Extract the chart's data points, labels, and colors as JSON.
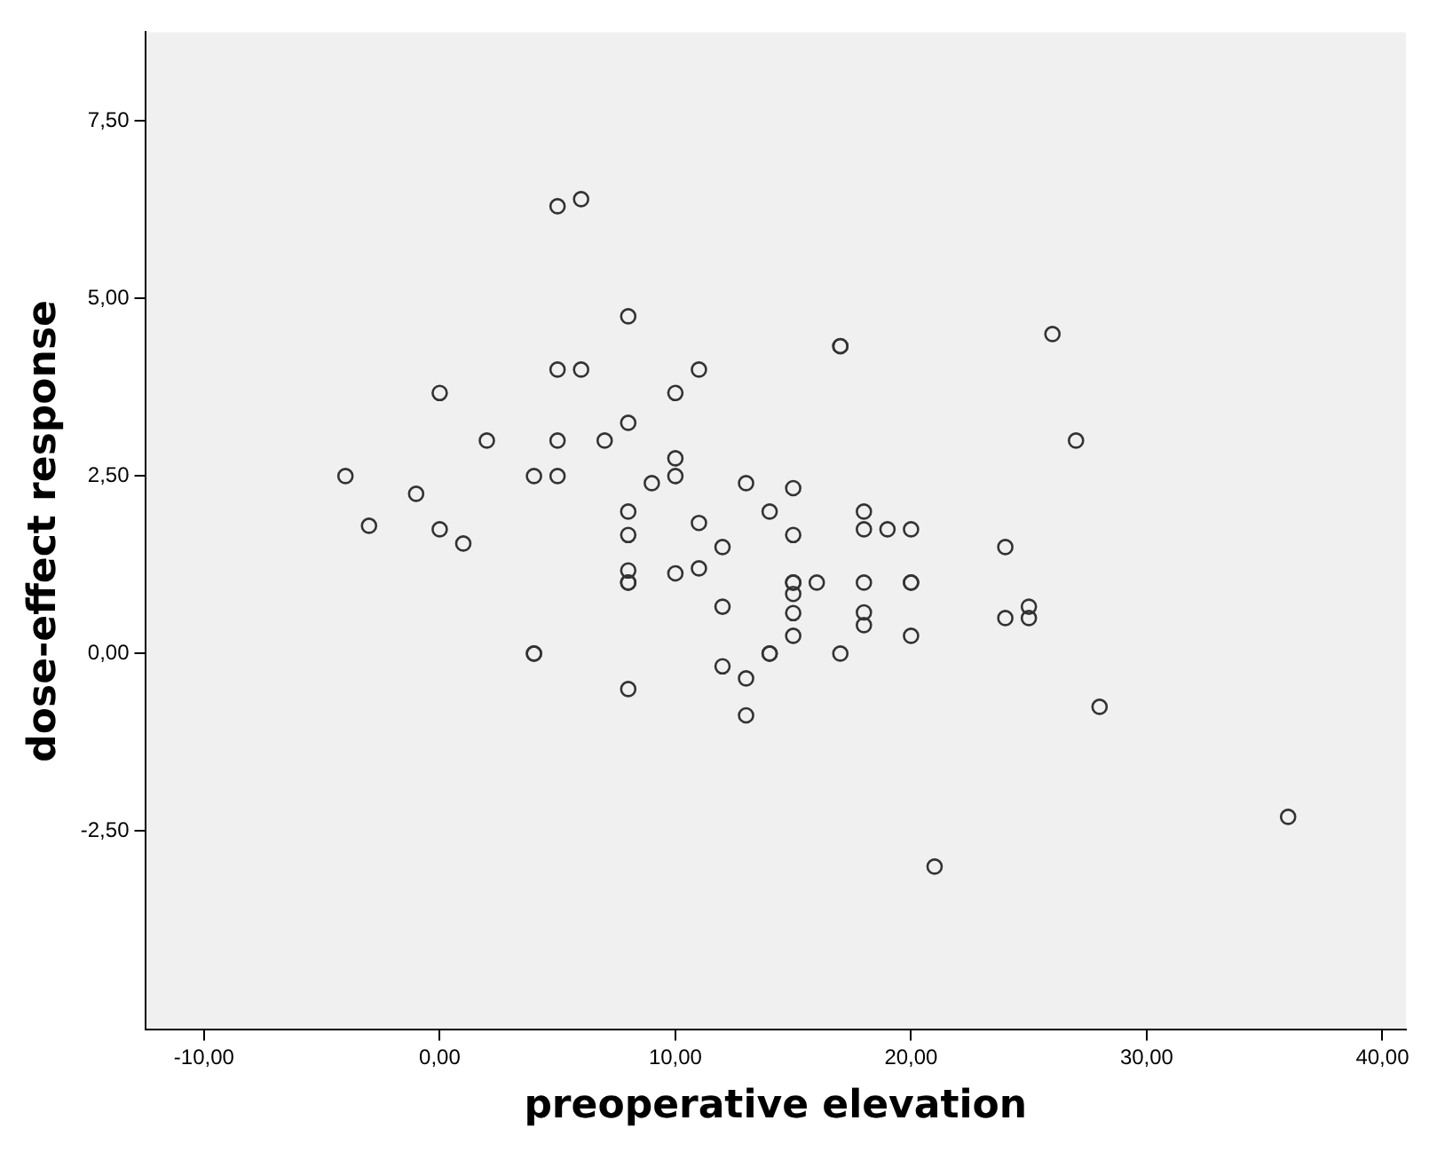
{
  "chart_data": {
    "type": "scatter",
    "xlabel": "preoperative elevation",
    "ylabel": "dose-effect response",
    "series": [
      {
        "color": "#333333",
        "x": [
          5,
          6,
          8,
          5,
          6,
          11,
          0,
          10,
          8,
          2,
          5,
          7,
          10,
          -4,
          4,
          5,
          9,
          10,
          13,
          -1,
          -3,
          0,
          1,
          8,
          8,
          11,
          14,
          12,
          8,
          8,
          8,
          10,
          11,
          12,
          4,
          4,
          12,
          13,
          14,
          14,
          8,
          13,
          17,
          17,
          26,
          27,
          15,
          18,
          18,
          19,
          20,
          15,
          24,
          15,
          15,
          15,
          16,
          18,
          20,
          20,
          15,
          18,
          18,
          25,
          24,
          25,
          15,
          20,
          17,
          28,
          21,
          36
        ],
        "values": [
          6.3,
          6.4,
          4.75,
          4.0,
          4.0,
          4.0,
          3.67,
          3.67,
          3.25,
          3.0,
          3.0,
          3.0,
          2.75,
          2.5,
          2.5,
          2.5,
          2.4,
          2.5,
          2.4,
          2.25,
          1.8,
          1.75,
          1.55,
          2.0,
          1.67,
          1.84,
          2.0,
          1.5,
          1.17,
          1.0,
          1.0,
          1.13,
          1.2,
          0.66,
          0.0,
          0.0,
          -0.18,
          -0.35,
          0.0,
          0.0,
          -0.5,
          -0.87,
          4.33,
          4.33,
          4.5,
          3.0,
          2.33,
          2.0,
          1.75,
          1.75,
          1.75,
          1.67,
          1.5,
          1.0,
          1.0,
          0.84,
          1.0,
          1.0,
          1.0,
          1.0,
          0.57,
          0.58,
          0.4,
          0.66,
          0.5,
          0.5,
          0.25,
          0.25,
          0.0,
          -0.75,
          -3.0,
          -2.3
        ]
      }
    ],
    "marker": "circle",
    "grid": false,
    "legend": false,
    "xlim": [
      -12.5,
      41
    ],
    "ylim": [
      -5.3,
      8.75
    ],
    "xticks": [
      {
        "value": -10,
        "label": "-10,00"
      },
      {
        "value": 0,
        "label": "0,00"
      },
      {
        "value": 10,
        "label": "10,00"
      },
      {
        "value": 20,
        "label": "20,00"
      },
      {
        "value": 30,
        "label": "30,00"
      },
      {
        "value": 40,
        "label": "40,00"
      }
    ],
    "yticks": [
      {
        "value": -2.5,
        "label": "-2,50"
      },
      {
        "value": 0,
        "label": "0,00"
      },
      {
        "value": 2.5,
        "label": "2,50"
      },
      {
        "value": 5,
        "label": "5,00"
      },
      {
        "value": 7.5,
        "label": "7,50"
      }
    ]
  }
}
